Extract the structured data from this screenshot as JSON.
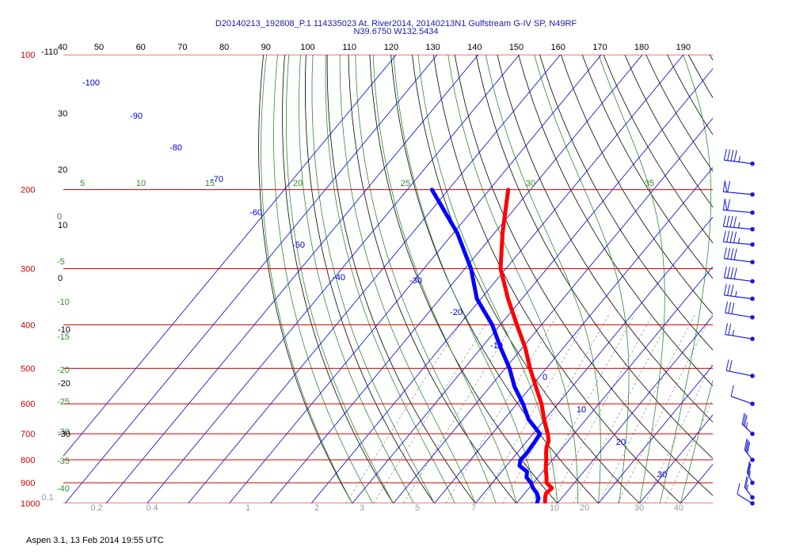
{
  "header": {
    "title_line1": "D20140213_192808_P.1 114335023 At. River2014, 20140213N1 Gulfstream G-IV SP, N49RF",
    "title_line2": "N39.6750 W132.5434"
  },
  "footer": {
    "text": "Aspen 3.1, 13 Feb 2014  19:55 UTC"
  },
  "colors": {
    "temperature": "#ff0000",
    "dewpoint": "#0000ff",
    "isobar": "#cc0000",
    "isotherm": "#0000cc",
    "dry_adiabat": "#000000",
    "moist_adiabat": "#2e8b2e",
    "mixing_ratio": "#999999",
    "wind": "#1a1ad0"
  },
  "chart_data": {
    "type": "line",
    "title": "D20140213_192808_P.1 114335023 At. River2014, 20140213N1 Gulfstream G-IV SP, N49RF",
    "subtitle": "N39.6750 W132.5434",
    "pressure_levels": [
      "100",
      "200",
      "300",
      "400",
      "500",
      "600",
      "700",
      "800",
      "900",
      "1000"
    ],
    "top_axis_ticks": [
      "-110",
      "40",
      "50",
      "60",
      "70",
      "80",
      "90",
      "100",
      "110",
      "120",
      "130",
      "140",
      "150",
      "160",
      "170",
      "180",
      "190"
    ],
    "isotherm_labels": [
      "-100",
      "-90",
      "-80",
      "-70",
      "-60",
      "-50",
      "-40",
      "-30",
      "-20",
      "-10",
      "0",
      "10",
      "20",
      "30"
    ],
    "moist_top_labels": [
      "5",
      "10",
      "15",
      "20",
      "25",
      "30",
      "35"
    ],
    "left_green_labels": [
      "0",
      "-5",
      "-10",
      "-15",
      "-20",
      "-25",
      "-30",
      "-35",
      "-40"
    ],
    "left_black_labels": [
      "30",
      "20",
      "10",
      "0",
      "-10",
      "-20",
      "-30"
    ],
    "mixing_ratio_labels": [
      "0.1",
      "0.2",
      "0.4",
      "1",
      "2",
      "3",
      "5",
      "7",
      "10",
      "20",
      "30",
      "40"
    ],
    "series": [
      {
        "key": "temperature",
        "pressure": [
          1000,
          975,
          950,
          925,
          900,
          875,
          850,
          825,
          800,
          775,
          750,
          725,
          700,
          650,
          600,
          550,
          500,
          450,
          400,
          350,
          300,
          250,
          200
        ],
        "values": [
          7.0,
          6.0,
          5.2,
          5.6,
          3.2,
          2.1,
          0.8,
          -0.4,
          -1.5,
          -2.8,
          -4.0,
          -4.8,
          -6.4,
          -10.2,
          -14.0,
          -18.8,
          -24.0,
          -29.3,
          -36.0,
          -43.4,
          -51.3,
          -58.0,
          -65.4
        ]
      },
      {
        "key": "dewpoint",
        "pressure": [
          1000,
          975,
          950,
          925,
          900,
          875,
          850,
          825,
          800,
          775,
          750,
          725,
          700,
          650,
          600,
          550,
          500,
          450,
          400,
          350,
          300,
          250,
          200
        ],
        "values": [
          5.0,
          4.4,
          3.0,
          1.0,
          -0.6,
          -2.8,
          -3.8,
          -6.8,
          -7.8,
          -7.6,
          -7.8,
          -8.0,
          -8.3,
          -14.0,
          -18.5,
          -24.0,
          -29.0,
          -35.3,
          -42.0,
          -51.0,
          -58.5,
          -69.0,
          -84.0
        ]
      }
    ],
    "wind_barbs": [
      {
        "pressure": 175,
        "speed": 45,
        "direction": 250
      },
      {
        "pressure": 205,
        "speed": 60,
        "direction": 255
      },
      {
        "pressure": 225,
        "speed": 60,
        "direction": 255
      },
      {
        "pressure": 245,
        "speed": 45,
        "direction": 255
      },
      {
        "pressure": 265,
        "speed": 45,
        "direction": 255
      },
      {
        "pressure": 290,
        "speed": 40,
        "direction": 250
      },
      {
        "pressure": 320,
        "speed": 40,
        "direction": 250
      },
      {
        "pressure": 350,
        "speed": 35,
        "direction": 250
      },
      {
        "pressure": 385,
        "speed": 30,
        "direction": 245
      },
      {
        "pressure": 430,
        "speed": 25,
        "direction": 245
      },
      {
        "pressure": 520,
        "speed": 20,
        "direction": 240
      },
      {
        "pressure": 600,
        "speed": 10,
        "direction": 225
      },
      {
        "pressure": 700,
        "speed": 35,
        "direction": 200
      },
      {
        "pressure": 800,
        "speed": 40,
        "direction": 195
      },
      {
        "pressure": 900,
        "speed": 35,
        "direction": 190
      },
      {
        "pressure": 970,
        "speed": 25,
        "direction": 195
      },
      {
        "pressure": 1000,
        "speed": 10,
        "direction": 210
      }
    ]
  }
}
